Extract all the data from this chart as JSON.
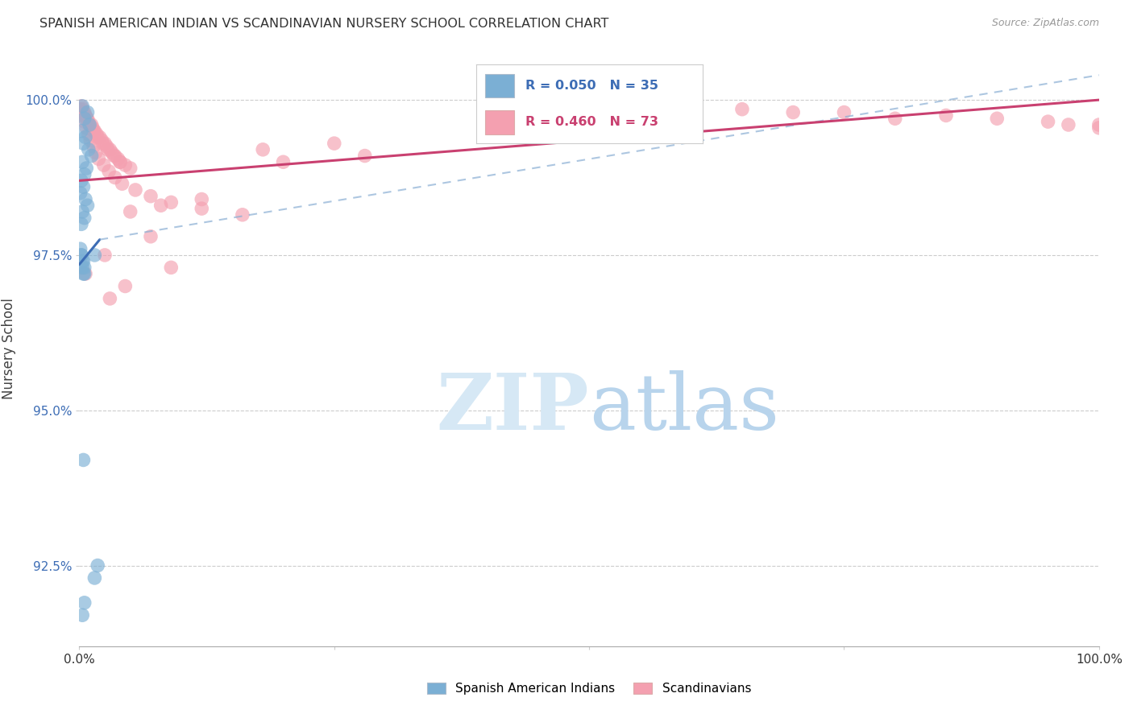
{
  "title": "SPANISH AMERICAN INDIAN VS SCANDINAVIAN NURSERY SCHOOL CORRELATION CHART",
  "source": "Source: ZipAtlas.com",
  "ylabel": "Nursery School",
  "ytick_labels": [
    "92.5%",
    "95.0%",
    "97.5%",
    "100.0%"
  ],
  "ytick_values": [
    92.5,
    95.0,
    97.5,
    100.0
  ],
  "legend_label1": "Spanish American Indians",
  "legend_label2": "Scandinavians",
  "R_blue": 0.05,
  "N_blue": 35,
  "R_pink": 0.46,
  "N_pink": 73,
  "blue_color": "#7BAFD4",
  "pink_color": "#F4A0B0",
  "blue_line_color": "#3D6DB5",
  "pink_line_color": "#C94070",
  "blue_dash_color": "#8AAFD4",
  "xmin": 0.0,
  "xmax": 100.0,
  "ymin": 91.2,
  "ymax": 100.8,
  "background_color": "#FFFFFF",
  "blue_scatter_x": [
    0.3,
    0.8,
    0.5,
    1.0,
    0.2,
    0.6,
    0.4,
    0.9,
    1.2,
    0.3,
    0.7,
    0.5,
    0.2,
    0.4,
    0.1,
    0.6,
    0.8,
    0.3,
    0.5,
    0.2,
    0.1,
    0.2,
    0.4,
    0.3,
    0.5,
    0.2,
    1.5,
    0.3,
    0.5,
    0.4,
    0.4,
    1.8,
    1.5,
    0.5,
    0.3
  ],
  "blue_scatter_y": [
    99.9,
    99.8,
    99.7,
    99.6,
    99.5,
    99.4,
    99.3,
    99.2,
    99.1,
    99.0,
    98.9,
    98.8,
    98.7,
    98.6,
    98.5,
    98.4,
    98.3,
    98.2,
    98.1,
    98.0,
    97.6,
    97.5,
    97.4,
    97.3,
    97.2,
    97.5,
    97.5,
    97.4,
    97.3,
    97.2,
    94.2,
    92.5,
    92.3,
    91.9,
    91.7
  ],
  "pink_scatter_x": [
    0.2,
    0.5,
    0.8,
    1.2,
    1.5,
    2.0,
    2.5,
    3.0,
    3.5,
    4.0,
    0.3,
    0.6,
    0.9,
    1.3,
    1.7,
    2.2,
    2.7,
    3.2,
    3.8,
    4.5,
    0.4,
    0.7,
    1.0,
    1.4,
    1.8,
    2.3,
    2.8,
    3.4,
    4.0,
    5.0,
    0.1,
    0.3,
    0.5,
    0.7,
    0.9,
    1.1,
    1.4,
    1.6,
    1.9,
    2.4,
    2.9,
    3.5,
    4.2,
    5.5,
    7.0,
    9.0,
    12.0,
    16.0,
    0.6,
    2.5,
    4.5,
    9.0,
    55.0,
    65.0,
    75.0,
    85.0,
    90.0,
    95.0,
    97.0,
    100.0,
    45.0,
    70.0,
    80.0,
    100.0,
    5.0,
    8.0,
    12.0,
    20.0,
    28.0,
    3.0,
    7.0,
    18.0,
    25.0
  ],
  "pink_scatter_y": [
    99.9,
    99.8,
    99.7,
    99.6,
    99.5,
    99.4,
    99.3,
    99.2,
    99.1,
    99.0,
    99.85,
    99.75,
    99.65,
    99.55,
    99.45,
    99.35,
    99.25,
    99.15,
    99.05,
    98.95,
    99.8,
    99.7,
    99.6,
    99.5,
    99.4,
    99.3,
    99.2,
    99.1,
    99.0,
    98.9,
    99.85,
    99.75,
    99.65,
    99.55,
    99.45,
    99.35,
    99.25,
    99.15,
    99.05,
    98.95,
    98.85,
    98.75,
    98.65,
    98.55,
    98.45,
    98.35,
    98.25,
    98.15,
    97.2,
    97.5,
    97.0,
    97.3,
    99.9,
    99.85,
    99.8,
    99.75,
    99.7,
    99.65,
    99.6,
    99.55,
    99.9,
    99.8,
    99.7,
    99.6,
    98.2,
    98.3,
    98.4,
    99.0,
    99.1,
    96.8,
    97.8,
    99.2,
    99.3
  ],
  "blue_trend_x0": 0.0,
  "blue_trend_x1": 2.0,
  "blue_trend_y0": 97.35,
  "blue_trend_y1": 97.75,
  "blue_dash_x0": 2.0,
  "blue_dash_x1": 100.0,
  "blue_dash_y0": 97.75,
  "blue_dash_y1": 100.4,
  "pink_trend_x0": 0.0,
  "pink_trend_x1": 100.0,
  "pink_trend_y0": 98.7,
  "pink_trend_y1": 100.0
}
